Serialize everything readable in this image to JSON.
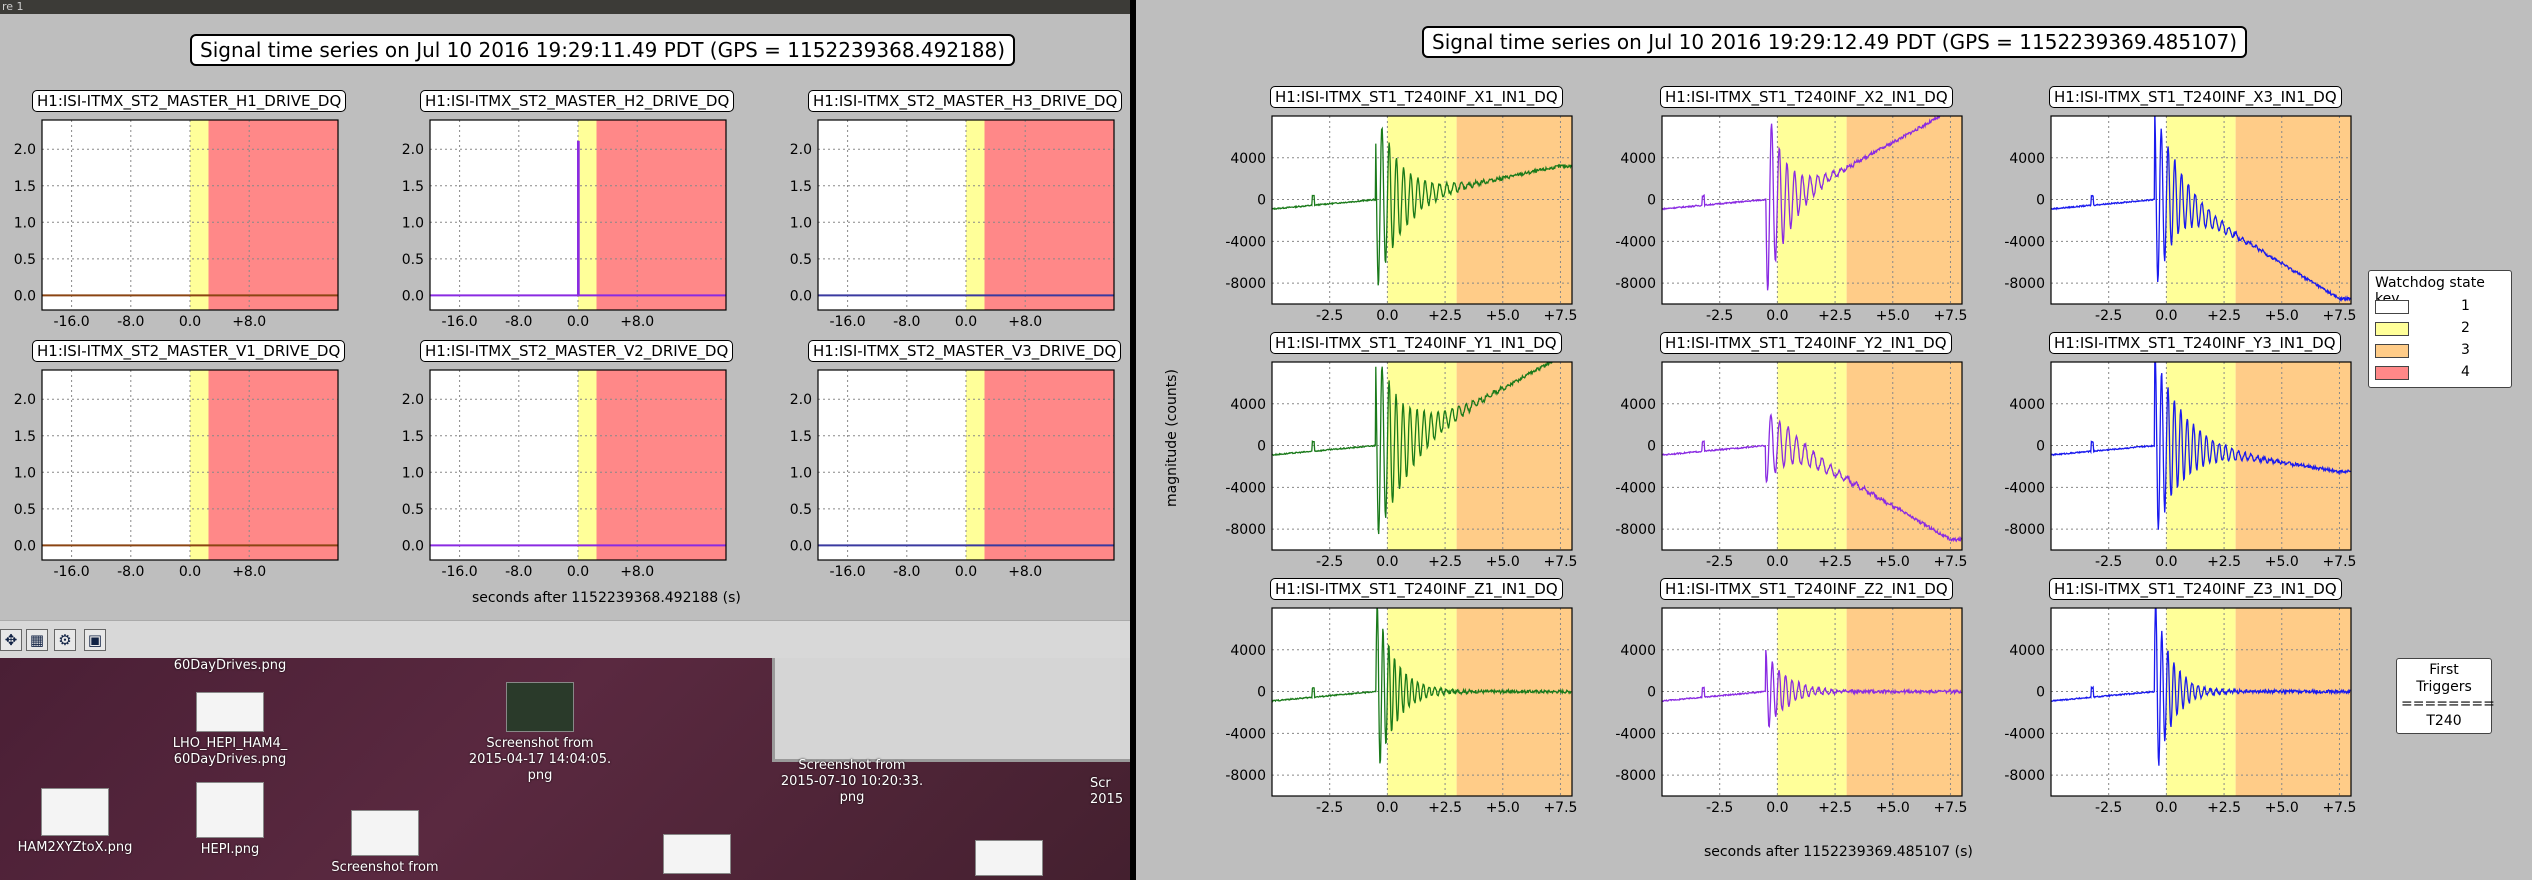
{
  "left_window": {
    "title_fragment": "re 1",
    "figure_title": "Signal time series on Jul 10 2016 19:29:11.49 PDT (GPS = 1152239368.492188)",
    "xlabel": "seconds after 1152239368.492188 (s)"
  },
  "right_window": {
    "figure_title": "Signal time series on Jul 10 2016 19:29:12.49 PDT (GPS = 1152239369.485107)",
    "xlabel": "seconds after 1152239369.485107 (s)",
    "ylabel": "magnitude (counts)"
  },
  "left_subplots": [
    {
      "title": "H1:ISI-ITMX_ST2_MASTER_H1_DRIVE_DQ",
      "trace": "flat",
      "color": "#8b4513"
    },
    {
      "title": "H1:ISI-ITMX_ST2_MASTER_H2_DRIVE_DQ",
      "trace": "spike",
      "color": "#8a2be2"
    },
    {
      "title": "H1:ISI-ITMX_ST2_MASTER_H3_DRIVE_DQ",
      "trace": "flat",
      "color": "#3a3aa0"
    },
    {
      "title": "H1:ISI-ITMX_ST2_MASTER_V1_DRIVE_DQ",
      "trace": "flat",
      "color": "#8b4513"
    },
    {
      "title": "H1:ISI-ITMX_ST2_MASTER_V2_DRIVE_DQ",
      "trace": "flat",
      "color": "#8a2be2"
    },
    {
      "title": "H1:ISI-ITMX_ST2_MASTER_V3_DRIVE_DQ",
      "trace": "flat",
      "color": "#3a3aa0"
    }
  ],
  "left_axes": {
    "xlim": [
      -20,
      20
    ],
    "ylim": [
      -0.2,
      2.4
    ],
    "yticks": [
      "0.0",
      "0.5",
      "1.0",
      "1.5",
      "2.0"
    ],
    "xticks": [
      "-16.0",
      "-8.0",
      "0.0",
      "+8.0"
    ],
    "state_regions": [
      {
        "state": "2",
        "from": 0,
        "to": 2.5
      },
      {
        "state": "4",
        "from": 2.5,
        "to": 20
      }
    ]
  },
  "right_subplots": [
    {
      "title": "H1:ISI-ITMX_ST1_T240INF_X1_IN1_DQ",
      "color": "#1a7a1a",
      "amp": 9000,
      "decay": 1.1,
      "trend": 3200,
      "freq": 3.2
    },
    {
      "title": "H1:ISI-ITMX_ST1_T240INF_X2_IN1_DQ",
      "color": "#8a2be2",
      "amp": 9500,
      "decay": 0.9,
      "trend": 8500,
      "freq": 3.0
    },
    {
      "title": "H1:ISI-ITMX_ST1_T240INF_X3_IN1_DQ",
      "color": "#1a1aee",
      "amp": 9000,
      "decay": 1.0,
      "trend": -9500,
      "freq": 3.4
    },
    {
      "title": "H1:ISI-ITMX_ST1_T240INF_Y1_IN1_DQ",
      "color": "#1a7a1a",
      "amp": 9500,
      "decay": 1.3,
      "trend": 8500,
      "freq": 3.3
    },
    {
      "title": "H1:ISI-ITMX_ST1_T240INF_Y2_IN1_DQ",
      "color": "#8a2be2",
      "amp": 3500,
      "decay": 1.4,
      "trend": -9000,
      "freq": 2.7
    },
    {
      "title": "H1:ISI-ITMX_ST1_T240INF_Y3_IN1_DQ",
      "color": "#1a1aee",
      "amp": 9000,
      "decay": 1.2,
      "trend": -2500,
      "freq": 3.6
    },
    {
      "title": "H1:ISI-ITMX_ST1_T240INF_Z1_IN1_DQ",
      "color": "#1a7a1a",
      "amp": 9000,
      "decay": 0.8,
      "trend": 0,
      "freq": 4.0
    },
    {
      "title": "H1:ISI-ITMX_ST1_T240INF_Z2_IN1_DQ",
      "color": "#8a2be2",
      "amp": 4000,
      "decay": 0.9,
      "trend": 0,
      "freq": 3.5
    },
    {
      "title": "H1:ISI-ITMX_ST1_T240INF_Z3_IN1_DQ",
      "color": "#1a1aee",
      "amp": 9000,
      "decay": 0.7,
      "trend": 0,
      "freq": 3.8
    }
  ],
  "right_axes": {
    "xlim": [
      -5,
      8
    ],
    "ylim": [
      -10000,
      8000
    ],
    "yticks": [
      "4000",
      "0",
      "-4000",
      "-8000"
    ],
    "xticks": [
      "-2.5",
      "0.0",
      "+2.5",
      "+5.0",
      "+7.5"
    ],
    "state_regions": [
      {
        "state": "2",
        "from": 0,
        "to": 3
      },
      {
        "state": "3",
        "from": 3,
        "to": 8
      }
    ]
  },
  "watchdog_legend": {
    "title": "Watchdog state key",
    "entries": [
      {
        "label": "1",
        "color": "#ffffff"
      },
      {
        "label": "2",
        "color": "#ffff99"
      },
      {
        "label": "3",
        "color": "#ffcc88"
      },
      {
        "label": "4",
        "color": "#ff8888"
      }
    ]
  },
  "first_triggers": {
    "title": "First Triggers",
    "sep": "========",
    "value": "T240"
  },
  "toolbar": {
    "icons": [
      "move-icon",
      "configure-icon",
      "edit-icon",
      "save-icon"
    ]
  },
  "desktop": {
    "icons": [
      {
        "label": "60DayDrives.png",
        "name": "file-60daydrives"
      },
      {
        "label": "LHO_HEPI_HAM4_\n60DayDrives.png",
        "name": "file-lho-hepi-ham4"
      },
      {
        "label": "Screenshot from\n2015-04-17 14:04:05.\npng",
        "name": "file-screenshot-2015-04-17"
      },
      {
        "label": "Screenshot from\n2015-07-10 10:20:33.\npng",
        "name": "file-screenshot-2015-07-10"
      },
      {
        "label": "HAM2XYZtoX.png",
        "name": "file-ham2xyztox"
      },
      {
        "label": "HEPI.png",
        "name": "file-hepi"
      },
      {
        "label": "Screenshot from",
        "name": "file-screenshot-partial"
      },
      {
        "label": "Scr\n2015",
        "name": "file-screenshot-cut"
      }
    ]
  }
}
